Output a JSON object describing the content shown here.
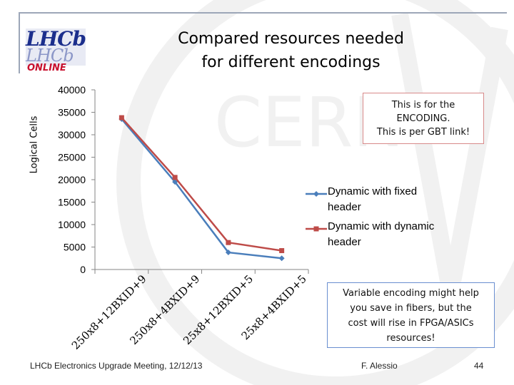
{
  "slide": {
    "title_line1": "Compared resources needed",
    "title_line2": "for different encodings",
    "logo_text": "LHCb",
    "logo_subtext": "ONLINE",
    "note_lines": [
      "This is for the",
      "ENCODING.",
      "This is per GBT link!"
    ],
    "note2_lines": [
      "Variable encoding might help",
      "you save in fibers, but the",
      "cost will rise in FPGA/ASICs",
      "resources!"
    ],
    "footer_left": "LHCb Electronics Upgrade Meeting, 12/12/13",
    "footer_author": "F. Alessio",
    "page_number": "44",
    "watermark_text": "CERN"
  },
  "chart_data": {
    "type": "line",
    "title": "",
    "xlabel": "",
    "ylabel": "Logical Cells",
    "categories": [
      "250x8+12BXID+9",
      "250x8+4BXID+9",
      "25x8+12BXID+5",
      "25x8+4BXID+5"
    ],
    "ylim": [
      0,
      40000
    ],
    "yticks": [
      0,
      5000,
      10000,
      15000,
      20000,
      25000,
      30000,
      35000,
      40000
    ],
    "grid": false,
    "legend_position": "right",
    "series": [
      {
        "name": "Dynamic with fixed header",
        "values": [
          33500,
          19500,
          3800,
          2500
        ],
        "color": "#4a7ebb",
        "marker": "diamond"
      },
      {
        "name": "Dynamic with dynamic header",
        "values": [
          33800,
          20500,
          6000,
          4200
        ],
        "color": "#be4b48",
        "marker": "square"
      }
    ]
  }
}
